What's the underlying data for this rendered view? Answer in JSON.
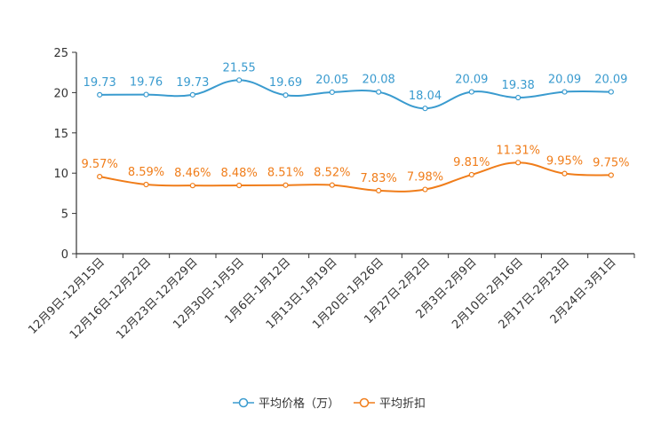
{
  "chart_data": {
    "type": "line",
    "title": "",
    "xlabel": "",
    "ylabel": "",
    "ylim": [
      0,
      25
    ],
    "yticks": [
      0,
      5,
      10,
      15,
      20,
      25
    ],
    "grid": false,
    "legend_position": "bottom-center",
    "categories": [
      "12月9日-12月15日",
      "12月16日-12月22日",
      "12月23日-12月29日",
      "12月30日-1月5日",
      "1月6日-1月12日",
      "1月13日-1月19日",
      "1月20日-1月26日",
      "1月27日-2月2日",
      "2月3日-2月9日",
      "2月10日-2月16日",
      "2月17日-2月23日",
      "2月24日-3月1日"
    ],
    "series": [
      {
        "name": "平均价格（万）",
        "color": "#3a9bcf",
        "values": [
          19.73,
          19.76,
          19.73,
          21.55,
          19.69,
          20.05,
          20.08,
          18.04,
          20.09,
          19.38,
          20.09,
          20.09
        ],
        "labels": [
          "19.73",
          "19.76",
          "19.73",
          "21.55",
          "19.69",
          "20.05",
          "20.08",
          "18.04",
          "20.09",
          "19.38",
          "20.09",
          "20.09"
        ]
      },
      {
        "name": "平均折扣",
        "color": "#f07d1a",
        "values": [
          9.57,
          8.59,
          8.46,
          8.48,
          8.51,
          8.52,
          7.83,
          7.98,
          9.81,
          11.31,
          9.95,
          9.75
        ],
        "labels": [
          "9.57%",
          "8.59%",
          "8.46%",
          "8.48%",
          "8.51%",
          "8.52%",
          "7.83%",
          "7.98%",
          "9.81%",
          "11.31%",
          "9.95%",
          "9.75%"
        ]
      }
    ]
  }
}
